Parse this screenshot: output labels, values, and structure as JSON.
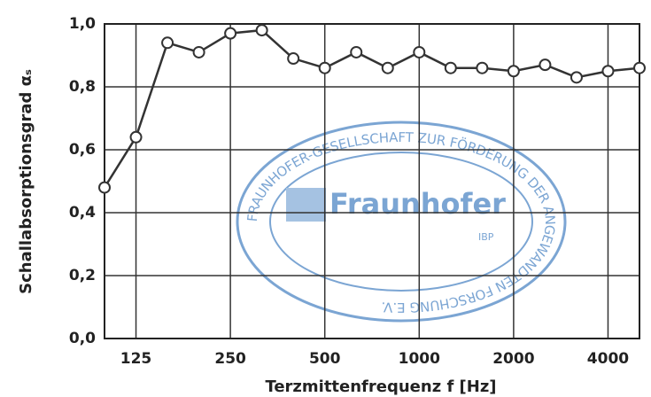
{
  "chart_data": {
    "type": "line",
    "x_label": "Terzmittenfrequenz f [Hz]",
    "y_label": "Schallabsorptionsgrad αₛ",
    "categories": [
      null,
      "125",
      null,
      null,
      "250",
      null,
      null,
      "500",
      null,
      null,
      "1000",
      null,
      null,
      "2000",
      null,
      null,
      "4000",
      null
    ],
    "series": [
      {
        "name": null,
        "color": "#333333",
        "values": [
          0.48,
          0.64,
          0.94,
          0.91,
          0.97,
          0.98,
          0.89,
          0.86,
          0.91,
          0.86,
          0.91,
          0.86,
          0.86,
          0.85,
          0.87,
          0.83,
          0.85,
          0.86
        ]
      }
    ],
    "ylim": [
      0,
      1
    ],
    "yticks": [
      {
        "value": 0,
        "label": "0,0"
      },
      {
        "value": 0.2,
        "label": "0,2"
      },
      {
        "value": 0.4,
        "label": "0,4"
      },
      {
        "value": 0.6,
        "label": "0,6"
      },
      {
        "value": 0.8,
        "label": "0,8"
      },
      {
        "value": 1,
        "label": "1,0"
      }
    ],
    "grid": true,
    "annotations": [
      "FRAUNHOFER-GESELLSCHAFT ZUR FÖRDERUNG DER ANGEWANDTEN FORSCHUNG E.V.",
      "Fraunhofer",
      "IBP"
    ]
  }
}
